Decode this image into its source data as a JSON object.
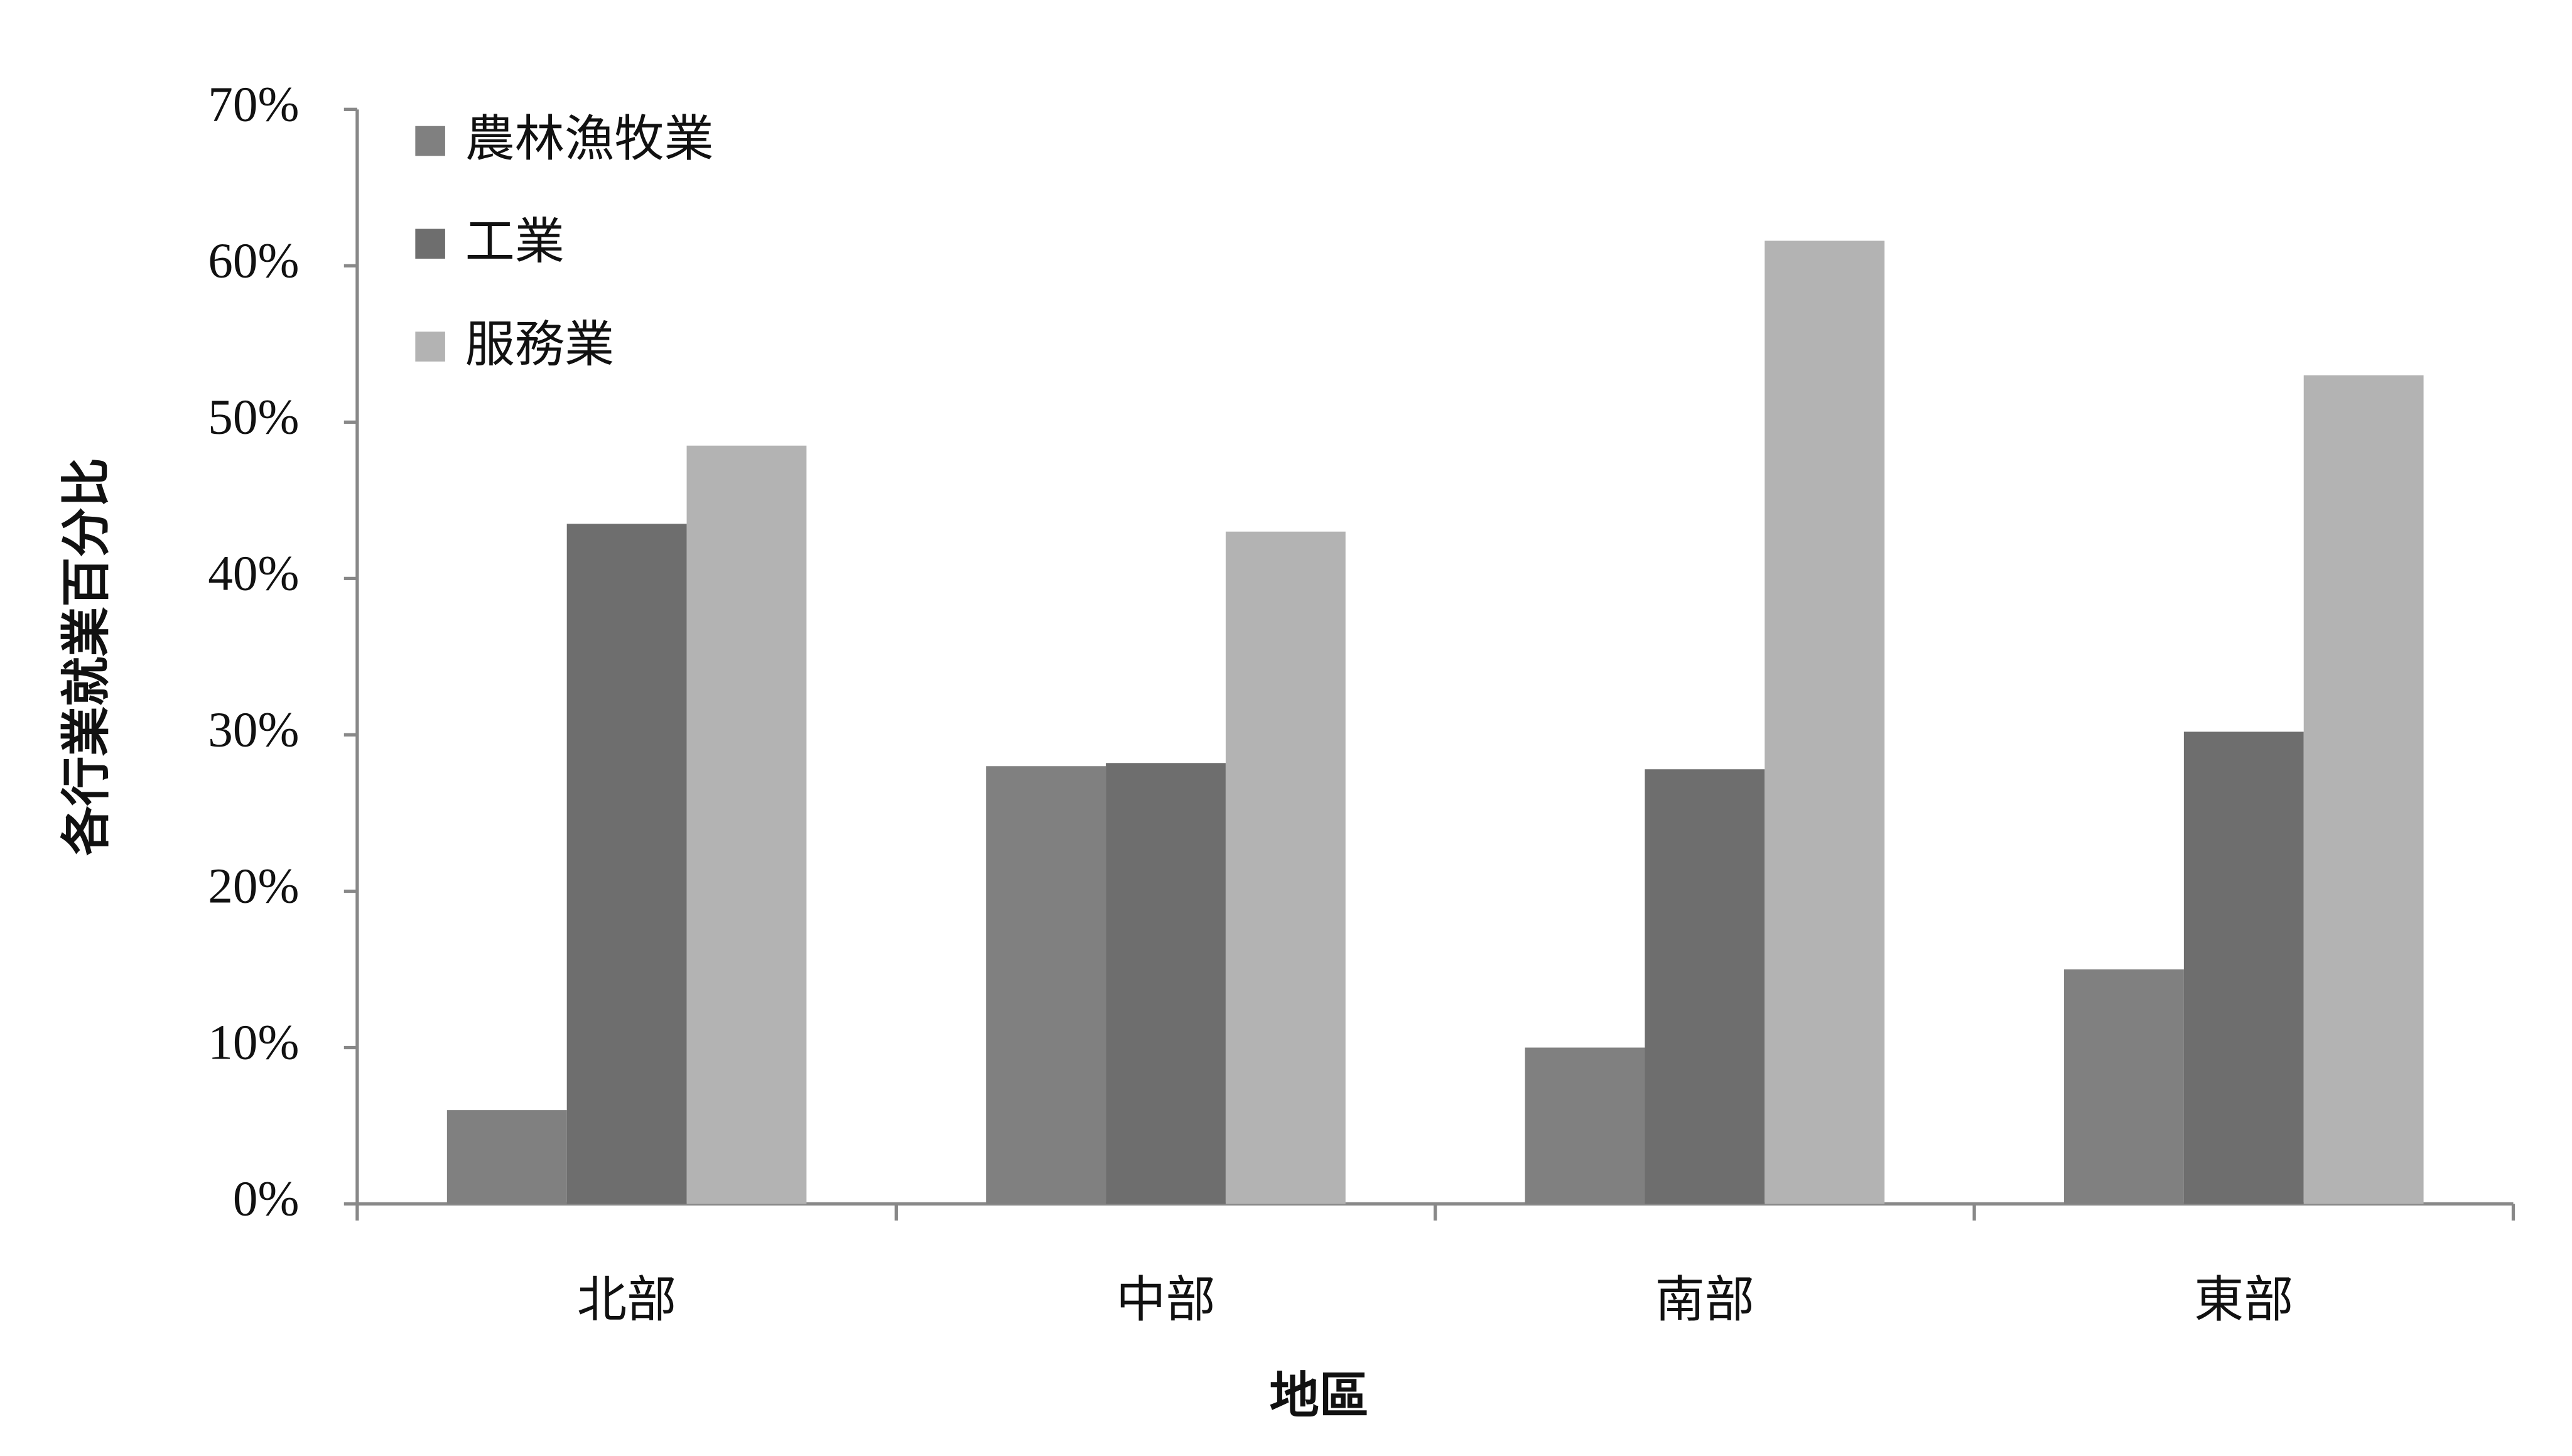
{
  "chart_data": {
    "type": "bar",
    "x_label": "地區",
    "y_label": "各行業就業百分比",
    "categories": [
      "北部",
      "中部",
      "南部",
      "東部"
    ],
    "series": [
      {
        "name": "農林漁牧業",
        "color": "#808080",
        "values": [
          6,
          28,
          10,
          15
        ]
      },
      {
        "name": "工業",
        "color": "#6e6e6e",
        "values": [
          43.5,
          28.2,
          27.8,
          30.2
        ]
      },
      {
        "name": "服務業",
        "color": "#b3b3b3",
        "values": [
          48.5,
          43,
          61.6,
          53
        ]
      }
    ],
    "ylim": [
      0,
      70
    ],
    "yticks": [
      {
        "value": 0,
        "label": "0%"
      },
      {
        "value": 10,
        "label": "10%"
      },
      {
        "value": 20,
        "label": "20%"
      },
      {
        "value": 30,
        "label": "30%"
      },
      {
        "value": 40,
        "label": "40%"
      },
      {
        "value": 50,
        "label": "50%"
      },
      {
        "value": 60,
        "label": "60%"
      },
      {
        "value": 70,
        "label": "70%"
      }
    ],
    "legend": "top-left"
  }
}
